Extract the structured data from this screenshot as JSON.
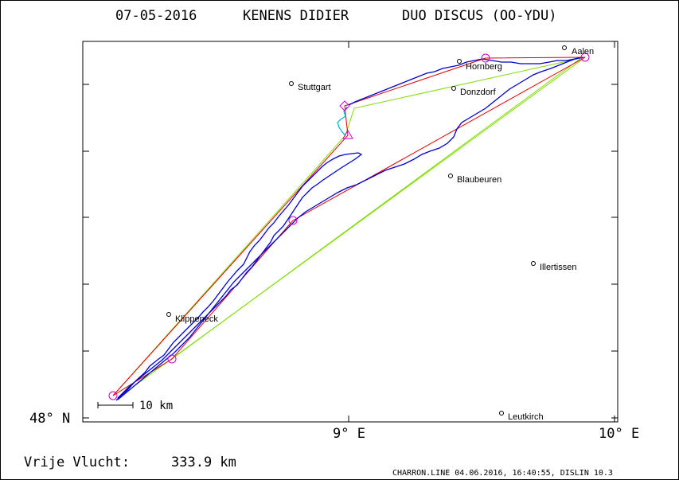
{
  "header": {
    "date": "07-05-2016",
    "pilot": "KENENS DIDIER",
    "glider": "DUO DISCUS (OO-YDU)"
  },
  "axes": {
    "y_tick_label": "48° N",
    "x_tick_labels": [
      "9° E",
      "10° E"
    ]
  },
  "scale_bar": {
    "label": "10 km"
  },
  "places": [
    {
      "name": "Aalen"
    },
    {
      "name": "Hornberg"
    },
    {
      "name": "Stuttgart"
    },
    {
      "name": "Donzdorf"
    },
    {
      "name": "Blaubeuren"
    },
    {
      "name": "Illertissen"
    },
    {
      "name": "Klippeneck"
    },
    {
      "name": "Leutkirch"
    }
  ],
  "footer": {
    "flight_label": "Vrije Vlucht:",
    "flight_distance": "333.9 km",
    "credit": "CHARRON.LINE 04.06.2016, 16:40:55, DISLIN 10.3"
  },
  "colors": {
    "frame": "#000000",
    "track": "#0000cc",
    "track_alt": "#00bcd4",
    "route": "#e00000",
    "triangle": "#7fdd00",
    "turnpoint": "#cc00cc"
  }
}
